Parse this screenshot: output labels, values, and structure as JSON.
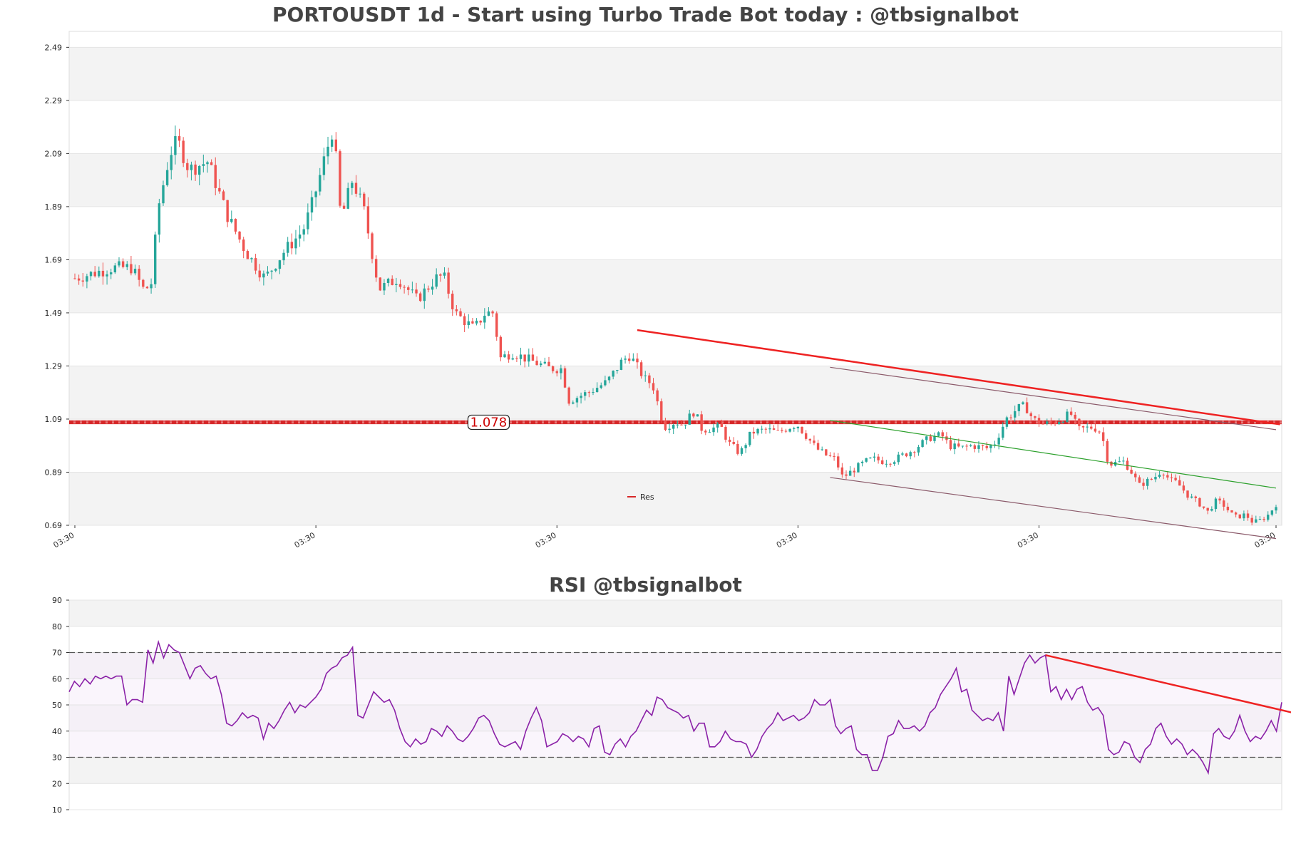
{
  "chart_data": [
    {
      "type": "candlestick",
      "title": "PORTOUSDT 1d - Start using Turbo Trade Bot today : @tbsignalbot",
      "ylim": [
        0.69,
        2.55
      ],
      "yticks": [
        0.69,
        0.89,
        1.09,
        1.29,
        1.49,
        1.69,
        1.89,
        2.09,
        2.29,
        2.49
      ],
      "ytick_labels": [
        "0.69",
        "0.89",
        "1.09",
        "1.29",
        "1.49",
        "1.69",
        "1.89",
        "2.09",
        "2.29",
        "2.49"
      ],
      "x_count": 300,
      "xtick_positions": [
        0,
        60,
        120,
        180,
        240,
        299
      ],
      "xtick_labels": [
        "03:30",
        "03:30",
        "03:30",
        "03:30",
        "03:30",
        "03:30"
      ],
      "close_anchors": [
        [
          0,
          1.62
        ],
        [
          10,
          1.66
        ],
        [
          15,
          1.66
        ],
        [
          18,
          1.58
        ],
        [
          20,
          1.59
        ],
        [
          22,
          1.89
        ],
        [
          25,
          2.09
        ],
        [
          27,
          2.14
        ],
        [
          30,
          2.03
        ],
        [
          35,
          2.06
        ],
        [
          40,
          1.86
        ],
        [
          45,
          1.72
        ],
        [
          50,
          1.62
        ],
        [
          55,
          1.72
        ],
        [
          60,
          1.8
        ],
        [
          62,
          1.88
        ],
        [
          64,
          1.98
        ],
        [
          66,
          2.09
        ],
        [
          68,
          2.19
        ],
        [
          70,
          1.84
        ],
        [
          73,
          1.99
        ],
        [
          76,
          1.88
        ],
        [
          80,
          1.58
        ],
        [
          85,
          1.62
        ],
        [
          90,
          1.54
        ],
        [
          95,
          1.62
        ],
        [
          97,
          1.63
        ],
        [
          100,
          1.49
        ],
        [
          105,
          1.43
        ],
        [
          108,
          1.49
        ],
        [
          110,
          1.49
        ],
        [
          112,
          1.32
        ],
        [
          115,
          1.34
        ],
        [
          120,
          1.31
        ],
        [
          125,
          1.28
        ],
        [
          128,
          1.28
        ],
        [
          130,
          1.16
        ],
        [
          135,
          1.19
        ],
        [
          140,
          1.23
        ],
        [
          142,
          1.27
        ],
        [
          144,
          1.31
        ],
        [
          146,
          1.33
        ],
        [
          150,
          1.24
        ],
        [
          152,
          1.22
        ],
        [
          155,
          1.06
        ],
        [
          158,
          1.08
        ],
        [
          160,
          1.07
        ],
        [
          163,
          1.12
        ],
        [
          165,
          1.05
        ],
        [
          170,
          1.06
        ],
        [
          172,
          1.0
        ],
        [
          175,
          0.96
        ],
        [
          178,
          1.04
        ],
        [
          182,
          1.05
        ],
        [
          185,
          1.04
        ],
        [
          188,
          1.06
        ],
        [
          190,
          1.07
        ],
        [
          195,
          0.98
        ],
        [
          198,
          0.95
        ],
        [
          200,
          0.94
        ],
        [
          202,
          0.87
        ],
        [
          205,
          0.9
        ],
        [
          208,
          0.93
        ],
        [
          210,
          0.94
        ],
        [
          213,
          0.93
        ],
        [
          216,
          0.94
        ],
        [
          220,
          0.97
        ],
        [
          225,
          1.02
        ],
        [
          228,
          1.03
        ],
        [
          230,
          0.99
        ],
        [
          233,
          0.98
        ],
        [
          236,
          0.99
        ],
        [
          240,
          0.98
        ],
        [
          242,
          1.0
        ],
        [
          245,
          1.09
        ],
        [
          248,
          1.13
        ],
        [
          250,
          1.14
        ],
        [
          252,
          1.09
        ],
        [
          255,
          1.07
        ],
        [
          258,
          1.08
        ],
        [
          262,
          1.11
        ],
        [
          264,
          1.05
        ],
        [
          268,
          1.06
        ],
        [
          270,
          1.04
        ],
        [
          272,
          0.92
        ],
        [
          276,
          0.93
        ],
        [
          278,
          0.89
        ],
        [
          280,
          0.84
        ],
        [
          284,
          0.87
        ],
        [
          286,
          0.9
        ],
        [
          288,
          0.86
        ],
        [
          290,
          0.85
        ],
        [
          293,
          0.8
        ],
        [
          296,
          0.77
        ],
        [
          298,
          0.74
        ],
        [
          300,
          0.78
        ],
        [
          302,
          0.77
        ],
        [
          305,
          0.72
        ],
        [
          308,
          0.73
        ],
        [
          310,
          0.7
        ],
        [
          312,
          0.71
        ],
        [
          314,
          0.73
        ],
        [
          316,
          0.77
        ]
      ],
      "resistance_level": 1.078,
      "annotation": "1.078",
      "legend": [
        {
          "name": "Res",
          "color": "#d62728"
        }
      ],
      "lines": [
        {
          "name": "downtrend",
          "color": "#ee2222",
          "width": 2.5,
          "x": [
            140,
            300
          ],
          "y": [
            1.425,
            1.07
          ]
        },
        {
          "name": "channel-upper",
          "color": "#8b5a6a",
          "width": 1.2,
          "x": [
            188,
            299
          ],
          "y": [
            1.285,
            1.05
          ]
        },
        {
          "name": "channel-mid",
          "color": "#2ca02c",
          "width": 1.2,
          "x": [
            188,
            299
          ],
          "y": [
            1.085,
            0.83
          ]
        },
        {
          "name": "channel-lower",
          "color": "#8b5a6a",
          "width": 1.2,
          "x": [
            188,
            299
          ],
          "y": [
            0.87,
            0.64
          ]
        }
      ],
      "up_color": "#26a69a",
      "down_color": "#ef5350"
    },
    {
      "type": "line",
      "title": "RSI @tbsignalbot",
      "ylim": [
        10,
        90
      ],
      "yticks": [
        10,
        20,
        30,
        40,
        50,
        60,
        70,
        80,
        90
      ],
      "ytick_labels": [
        "10",
        "20",
        "30",
        "40",
        "50",
        "60",
        "70",
        "80",
        "90"
      ],
      "overbought": 70,
      "oversold": 30,
      "line_color": "#8b22a8",
      "values": [
        55,
        59,
        57,
        60,
        58,
        61,
        60,
        61,
        60,
        61,
        61,
        50,
        52,
        52,
        51,
        71,
        66,
        74,
        68,
        73,
        71,
        70,
        65,
        60,
        64,
        65,
        62,
        60,
        61,
        54,
        43,
        42,
        44,
        47,
        45,
        46,
        45,
        37,
        43,
        41,
        44,
        48,
        51,
        47,
        50,
        49,
        51,
        53,
        56,
        62,
        64,
        65,
        68,
        69,
        72,
        46,
        45,
        50,
        55,
        53,
        51,
        52,
        48,
        41,
        36,
        34,
        37,
        35,
        36,
        41,
        40,
        38,
        42,
        40,
        37,
        36,
        38,
        41,
        45,
        46,
        44,
        39,
        35,
        34,
        35,
        36,
        33,
        40,
        45,
        49,
        44,
        34,
        35,
        36,
        39,
        38,
        36,
        38,
        37,
        34,
        41,
        42,
        32,
        31,
        35,
        37,
        34,
        38,
        40,
        44,
        48,
        46,
        53,
        52,
        49,
        48,
        47,
        45,
        46,
        40,
        43,
        43,
        34,
        34,
        36,
        40,
        37,
        36,
        36,
        35,
        30,
        33,
        38,
        41,
        43,
        47,
        44,
        45,
        46,
        44,
        45,
        47,
        52,
        50,
        50,
        52,
        42,
        39,
        41,
        42,
        33,
        31,
        31,
        25,
        25,
        30,
        38,
        39,
        44,
        41,
        41,
        42,
        40,
        42,
        47,
        49,
        54,
        57,
        60,
        64,
        55,
        56,
        48,
        46,
        44,
        45,
        44,
        47,
        40,
        61,
        54,
        60,
        66,
        69,
        66,
        68,
        69,
        55,
        57,
        52,
        56,
        52,
        56,
        57,
        51,
        48,
        49,
        46,
        33,
        31,
        32,
        36,
        35,
        30,
        28,
        33,
        35,
        41,
        43,
        38,
        35,
        37,
        35,
        31,
        33,
        31,
        28,
        24,
        39,
        41,
        38,
        37,
        40,
        46,
        40,
        36,
        38,
        37,
        40,
        44,
        40,
        51
      ],
      "lines": [
        {
          "name": "rsi-downtrend",
          "color": "#ee2222",
          "width": 2.5,
          "x": [
            186,
            246
          ],
          "y": [
            69,
            41
          ]
        }
      ]
    }
  ]
}
